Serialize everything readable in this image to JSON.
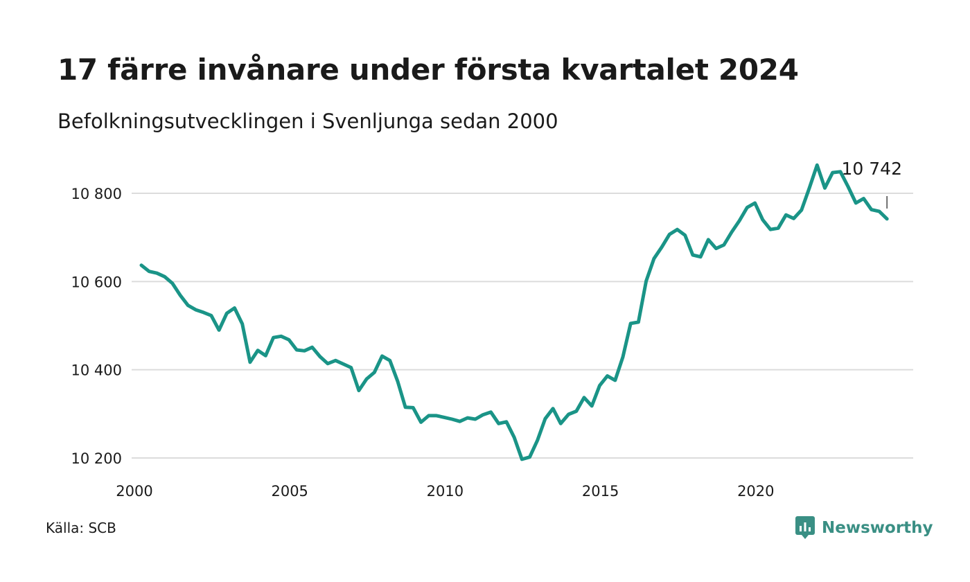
{
  "header": {
    "title": "17 färre invånare under första kvartalet 2024",
    "subtitle": "Befolkningsutvecklingen i Svenljunga sedan 2000"
  },
  "footer": {
    "source": "Källa: SCB",
    "brand": "Newsworthy",
    "brand_icon": "newsworthy-logo-icon",
    "brand_color": "#3a8f84"
  },
  "chart_data": {
    "type": "line",
    "title": "17 färre invånare under första kvartalet 2024",
    "subtitle": "Befolkningsutvecklingen i Svenljunga sedan 2000",
    "xlabel": "",
    "ylabel": "",
    "x_ticks": [
      "2000",
      "2005",
      "2010",
      "2015",
      "2020"
    ],
    "y_ticks": [
      "10 200",
      "10 400",
      "10 600",
      "10 800"
    ],
    "y_tick_values": [
      10200,
      10400,
      10600,
      10800
    ],
    "xlim": [
      2000.0,
      2025.0
    ],
    "ylim": [
      10195,
      10870
    ],
    "grid": "horizontal",
    "line_color": "#1a9487",
    "last_value_label": "10 742",
    "series": [
      {
        "x": [
          2000.0,
          2000.25,
          2000.5,
          2000.75,
          2001.0,
          2001.25,
          2001.5,
          2001.75,
          2002.0,
          2002.25,
          2002.5,
          2002.75,
          2003.0,
          2003.25,
          2003.5,
          2003.75,
          2004.0,
          2004.25,
          2004.5,
          2004.75,
          2005.0,
          2005.25,
          2005.5,
          2005.75,
          2006.0,
          2006.25,
          2006.5,
          2006.75,
          2007.0,
          2007.25,
          2007.5,
          2007.75,
          2008.0,
          2008.25,
          2008.5,
          2008.75,
          2009.0,
          2009.25,
          2009.5,
          2009.75,
          2010.0,
          2010.25,
          2010.5,
          2010.75,
          2011.0,
          2011.25,
          2011.5,
          2011.75,
          2012.0,
          2012.25,
          2012.5,
          2012.75,
          2013.0,
          2013.25,
          2013.5,
          2013.75,
          2014.0,
          2014.25,
          2014.5,
          2014.75,
          2015.0,
          2015.25,
          2015.5,
          2015.75,
          2016.0,
          2016.25,
          2016.5,
          2016.75,
          2017.0,
          2017.25,
          2017.5,
          2017.75,
          2018.0,
          2018.25,
          2018.5,
          2018.75,
          2019.0,
          2019.25,
          2019.5,
          2019.75,
          2020.0,
          2020.25,
          2020.5,
          2020.75,
          2021.0,
          2021.25,
          2021.5,
          2021.75,
          2022.0,
          2022.25,
          2022.5,
          2022.75,
          2023.0,
          2023.25,
          2023.5,
          2023.75,
          2024.0
        ],
        "values": [
          10637,
          10623,
          10619,
          10611,
          10596,
          10569,
          10546,
          10536,
          10530,
          10523,
          10490,
          10528,
          10540,
          10504,
          10417,
          10444,
          10432,
          10473,
          10476,
          10468,
          10445,
          10443,
          10451,
          10430,
          10414,
          10421,
          10413,
          10405,
          10353,
          10379,
          10394,
          10431,
          10421,
          10374,
          10315,
          10314,
          10281,
          10296,
          10296,
          10292,
          10288,
          10283,
          10291,
          10288,
          10298,
          10304,
          10278,
          10282,
          10247,
          10197,
          10202,
          10240,
          10289,
          10312,
          10278,
          10299,
          10306,
          10337,
          10318,
          10364,
          10386,
          10376,
          10429,
          10505,
          10508,
          10601,
          10652,
          10678,
          10707,
          10718,
          10705,
          10660,
          10656,
          10695,
          10675,
          10683,
          10712,
          10738,
          10768,
          10778,
          10740,
          10718,
          10721,
          10751,
          10743,
          10762,
          10812,
          10864,
          10812,
          10847,
          10849,
          10815,
          10778,
          10788,
          10763,
          10759,
          10742
        ]
      }
    ]
  }
}
